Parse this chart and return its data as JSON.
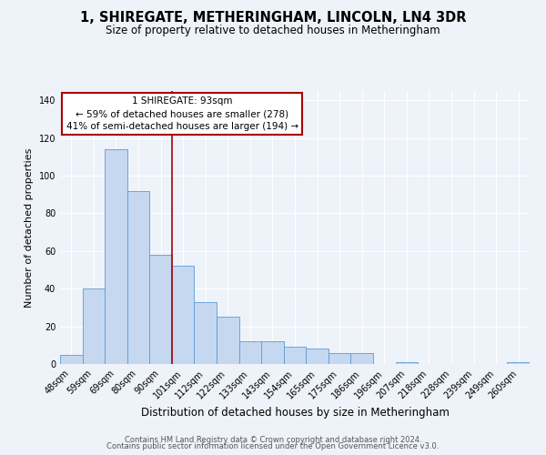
{
  "title": "1, SHIREGATE, METHERINGHAM, LINCOLN, LN4 3DR",
  "subtitle": "Size of property relative to detached houses in Metheringham",
  "xlabel": "Distribution of detached houses by size in Metheringham",
  "ylabel": "Number of detached properties",
  "categories": [
    "48sqm",
    "59sqm",
    "69sqm",
    "80sqm",
    "90sqm",
    "101sqm",
    "112sqm",
    "122sqm",
    "133sqm",
    "143sqm",
    "154sqm",
    "165sqm",
    "175sqm",
    "186sqm",
    "196sqm",
    "207sqm",
    "218sqm",
    "228sqm",
    "239sqm",
    "249sqm",
    "260sqm"
  ],
  "values": [
    5,
    40,
    114,
    92,
    58,
    52,
    33,
    25,
    12,
    12,
    9,
    8,
    6,
    6,
    0,
    1,
    0,
    0,
    0,
    0,
    1
  ],
  "bar_color": "#c5d8f0",
  "bar_edge_color": "#5b9bd5",
  "ylim": [
    0,
    145
  ],
  "yticks": [
    0,
    20,
    40,
    60,
    80,
    100,
    120,
    140
  ],
  "vline_x": 4.5,
  "vline_color": "#aa0000",
  "annotation_title": "1 SHIREGATE: 93sqm",
  "annotation_line1": "← 59% of detached houses are smaller (278)",
  "annotation_line2": "41% of semi-detached houses are larger (194) →",
  "annotation_box_color": "#aa0000",
  "background_color": "#eef2f9",
  "footer_line1": "Contains HM Land Registry data © Crown copyright and database right 2024.",
  "footer_line2": "Contains public sector information licensed under the Open Government Licence v3.0.",
  "title_fontsize": 10.5,
  "subtitle_fontsize": 8.5,
  "xlabel_fontsize": 8.5,
  "ylabel_fontsize": 8,
  "tick_fontsize": 7,
  "annotation_fontsize": 7.5,
  "footer_fontsize": 6
}
